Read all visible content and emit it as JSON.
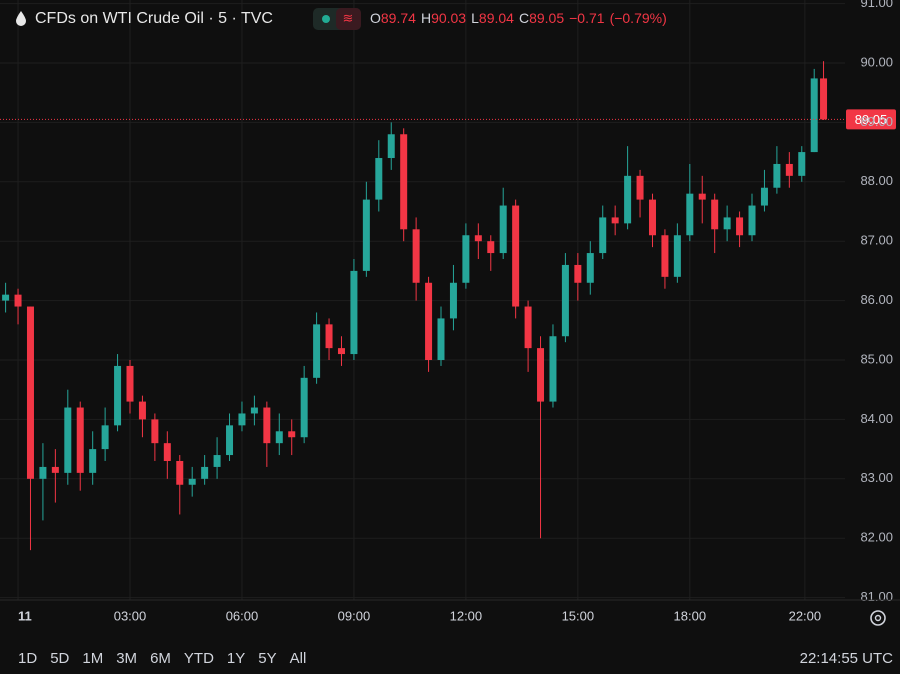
{
  "chart_data": {
    "type": "candlestick",
    "title": "CFDs on WTI Crude Oil · 5 · TVC",
    "ohlc_labels": [
      "O",
      "H",
      "L",
      "C"
    ],
    "change": "−0.71",
    "change_pct": "(−0.79%)",
    "up_color": "#26a69a",
    "down_color": "#f23645",
    "grid": true,
    "x": [
      -4,
      0,
      4,
      8,
      12,
      16,
      20,
      24,
      28,
      32,
      36,
      40,
      44,
      48,
      52,
      56,
      60,
      64,
      68,
      72,
      76,
      80,
      84,
      88,
      92,
      96,
      100,
      104,
      108,
      112,
      116,
      120,
      124,
      128,
      132,
      136,
      140,
      144,
      148,
      152,
      156,
      160,
      164,
      168,
      172,
      176,
      180,
      184,
      188,
      192,
      196,
      200,
      204,
      208,
      212,
      216,
      220,
      224,
      228,
      232,
      236,
      240,
      244,
      248,
      252,
      256,
      259
    ],
    "open": [
      86.0,
      86.1,
      85.9,
      83.0,
      83.2,
      83.1,
      84.2,
      83.1,
      83.5,
      83.9,
      84.9,
      84.3,
      84.0,
      83.6,
      83.3,
      82.9,
      83.0,
      83.2,
      83.4,
      83.9,
      84.1,
      84.2,
      83.6,
      83.8,
      83.7,
      84.7,
      85.6,
      85.2,
      85.1,
      86.5,
      87.7,
      88.4,
      88.8,
      87.2,
      86.3,
      85.0,
      85.7,
      86.3,
      87.1,
      87.0,
      86.8,
      87.6,
      85.9,
      85.2,
      84.3,
      85.4,
      86.6,
      86.3,
      86.8,
      87.4,
      87.3,
      88.1,
      87.7,
      87.1,
      86.4,
      87.1,
      87.8,
      87.7,
      87.2,
      87.4,
      87.1,
      87.6,
      87.9,
      88.3,
      88.1,
      88.5,
      89.74
    ],
    "high": [
      86.3,
      86.2,
      85.9,
      83.6,
      83.5,
      84.5,
      84.3,
      83.8,
      84.2,
      85.1,
      85.0,
      84.4,
      84.1,
      83.8,
      83.4,
      83.2,
      83.4,
      83.7,
      84.1,
      84.3,
      84.4,
      84.3,
      84.1,
      84.0,
      84.9,
      85.8,
      85.7,
      85.4,
      86.7,
      88.0,
      88.7,
      89.0,
      88.9,
      87.4,
      86.4,
      85.9,
      86.6,
      87.3,
      87.3,
      87.1,
      87.9,
      87.7,
      86.0,
      85.4,
      85.6,
      86.8,
      86.8,
      87.0,
      87.6,
      87.6,
      88.6,
      88.2,
      87.8,
      87.2,
      87.3,
      88.3,
      88.1,
      87.8,
      87.6,
      87.5,
      87.8,
      88.2,
      88.6,
      88.5,
      88.6,
      89.9,
      90.03
    ],
    "low": [
      85.8,
      85.6,
      81.8,
      82.3,
      82.6,
      82.9,
      82.8,
      82.9,
      83.3,
      83.8,
      84.1,
      83.7,
      83.3,
      83.0,
      82.4,
      82.7,
      82.9,
      83.0,
      83.3,
      83.8,
      83.9,
      83.2,
      83.4,
      83.4,
      83.6,
      84.6,
      85.0,
      84.9,
      85.0,
      86.4,
      87.5,
      88.2,
      87.0,
      86.0,
      84.8,
      84.9,
      85.5,
      86.2,
      86.7,
      86.5,
      86.7,
      85.7,
      84.8,
      82.0,
      84.2,
      85.3,
      86.0,
      86.1,
      86.7,
      87.1,
      87.2,
      87.4,
      86.9,
      86.2,
      86.3,
      87.0,
      87.3,
      86.8,
      87.0,
      86.9,
      87.0,
      87.5,
      87.8,
      87.9,
      88.0,
      88.5,
      89.04
    ],
    "close": [
      86.1,
      85.9,
      83.0,
      83.2,
      83.1,
      84.2,
      83.1,
      83.5,
      83.9,
      84.9,
      84.3,
      84.0,
      83.6,
      83.3,
      82.9,
      83.0,
      83.2,
      83.4,
      83.9,
      84.1,
      84.2,
      83.6,
      83.8,
      83.7,
      84.7,
      85.6,
      85.2,
      85.1,
      86.5,
      87.7,
      88.4,
      88.8,
      87.2,
      86.3,
      85.0,
      85.7,
      86.3,
      87.1,
      87.0,
      86.8,
      87.6,
      85.9,
      85.2,
      84.3,
      85.4,
      86.6,
      86.3,
      86.8,
      87.4,
      87.3,
      88.1,
      87.7,
      87.1,
      86.4,
      87.1,
      87.8,
      87.7,
      87.2,
      87.4,
      87.1,
      87.6,
      87.9,
      88.3,
      88.1,
      88.5,
      89.74,
      89.05
    ],
    "xlim": [
      -5.8,
      265.9
    ],
    "xticks": [
      {
        "value": 0,
        "label": "11"
      },
      {
        "value": 36,
        "label": "03:00"
      },
      {
        "value": 72,
        "label": "06:00"
      },
      {
        "value": 108,
        "label": "09:00"
      },
      {
        "value": 144,
        "label": "12:00"
      },
      {
        "value": 180,
        "label": "15:00"
      },
      {
        "value": 216,
        "label": "18:00"
      },
      {
        "value": 253,
        "label": "22:00"
      }
    ],
    "ylim": [
      80.96,
      91.06
    ],
    "yticks": [
      {
        "value": 81,
        "label": "81.00"
      },
      {
        "value": 82,
        "label": "82.00"
      },
      {
        "value": 83,
        "label": "83.00"
      },
      {
        "value": 84,
        "label": "84.00"
      },
      {
        "value": 85,
        "label": "85.00"
      },
      {
        "value": 86,
        "label": "86.00"
      },
      {
        "value": 87,
        "label": "87.00"
      },
      {
        "value": 88,
        "label": "88.00"
      },
      {
        "value": 89,
        "label": "89.00"
      },
      {
        "value": 90,
        "label": "90.00"
      },
      {
        "value": 91,
        "label": "91.00"
      }
    ]
  },
  "toolbar": {
    "ranges": [
      "1D",
      "5D",
      "1M",
      "3M",
      "6M",
      "YTD",
      "1Y",
      "5Y",
      "All"
    ],
    "clock": "22:14:55 UTC"
  }
}
